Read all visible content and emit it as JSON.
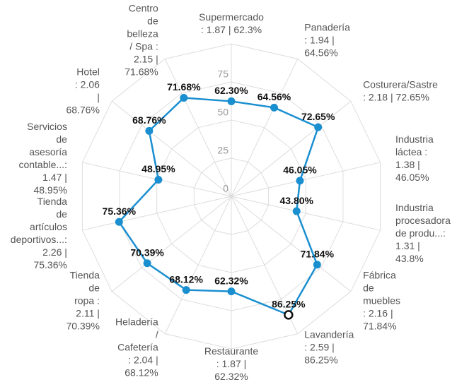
{
  "chart_data": {
    "type": "radar",
    "categories": [
      [
        "Supermercado",
        ": 1.87 | 62.3%"
      ],
      [
        "Panadería",
        ": 1.94 |",
        "64.56%"
      ],
      [
        "Costurera/Sastre",
        ": 2.18 | 72.65%"
      ],
      [
        "Industria",
        "láctea :",
        "1.38 |",
        "46.05%"
      ],
      [
        "Industria",
        "procesadora",
        "de produ...:",
        "1.31 |",
        "43.8%"
      ],
      [
        "Fábrica",
        "de",
        "muebles",
        ": 2.16 |",
        "71.84%"
      ],
      [
        "Lavandería",
        ": 2.59 |",
        "86.25%"
      ],
      [
        "Restaurante",
        ": 1.87 |",
        "62.32%"
      ],
      [
        "Heladería",
        "/",
        "Cafetería",
        ": 2.04 |",
        "68.12%"
      ],
      [
        "Tienda",
        "de",
        "ropa :",
        "2.11 |",
        "70.39%"
      ],
      [
        "Tienda",
        "de",
        "artículos",
        "deportivos...:",
        "2.26 |",
        "75.36%"
      ],
      [
        "Servicios",
        "de",
        "asesoría",
        "contable...:",
        "1.47 |",
        "48.95%"
      ],
      [
        "Hotel",
        ": 2.06",
        "|",
        "68.76%"
      ],
      [
        "Centro",
        "de",
        "belleza",
        "/ Spa :",
        "2.15 |",
        "71.68%"
      ]
    ],
    "values": [
      62.3,
      64.56,
      72.65,
      46.05,
      43.8,
      71.84,
      86.25,
      62.32,
      68.12,
      70.39,
      75.36,
      48.95,
      68.76,
      71.68
    ],
    "value_labels": [
      "62.30%",
      "64.56%",
      "72.65%",
      "46.05%",
      "43.80%",
      "71.84%",
      "86.25%",
      "62.32%",
      "68.12%",
      "70.39%",
      "75.36%",
      "48.95%",
      "68.76%",
      "71.68%"
    ],
    "color": "#1a8fd0",
    "highlighted_index": 6,
    "ylim": [
      0,
      100
    ],
    "yticks": [
      0,
      25,
      50,
      75
    ],
    "grid": true
  }
}
